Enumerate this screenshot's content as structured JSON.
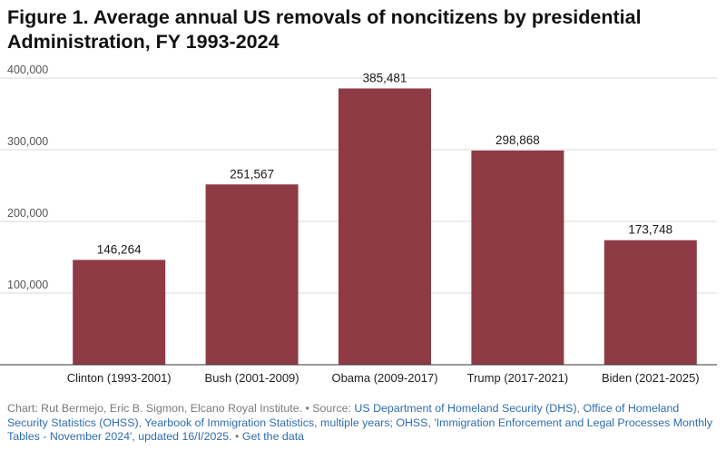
{
  "title": "Figure 1. Average annual US removals of noncitizens by presidential Administration, FY 1993-2024",
  "colors": {
    "bar": "#8e3b45",
    "grid": "#d9d9d9",
    "link": "#2e6db0",
    "muted": "#7a7a7a"
  },
  "chart_data": {
    "type": "bar",
    "title": "Figure 1. Average annual US removals of noncitizens by presidential Administration, FY 1993-2024",
    "categories": [
      "Clinton (1993-2001)",
      "Bush (2001-2009)",
      "Obama (2009-2017)",
      "Trump (2017-2021)",
      "Biden (2021-2025)"
    ],
    "values": [
      146264,
      251567,
      385481,
      298868,
      173748
    ],
    "value_labels": [
      "146,264",
      "251,567",
      "385,481",
      "298,868",
      "173,748"
    ],
    "ylim": [
      0,
      400000
    ],
    "yticks": [
      100000,
      200000,
      300000,
      400000
    ],
    "ytick_labels": [
      "100,000",
      "200,000",
      "300,000",
      "400,000"
    ],
    "xlabel": "",
    "ylabel": "",
    "grid": true,
    "bar_color": "#8e3b45"
  },
  "footer": {
    "credit": "Chart: Rut Bermejo, Eric B. Sigmon, Elcano Royal Institute.",
    "sep1": " • Source: ",
    "source1": "US Department of Homeland Security (DHS)",
    "comma1": ", ",
    "source2": "Office of Homeland Security Statistics (OHSS)",
    "comma2": ", ",
    "source3": "Yearbook of Immigration Statistics, multiple years; OHSS, 'Immigration Enforcement and Legal Processes Monthly Tables - November 2024', updated 16/I/2025.",
    "sep2": " • ",
    "get_data": "Get the data"
  }
}
